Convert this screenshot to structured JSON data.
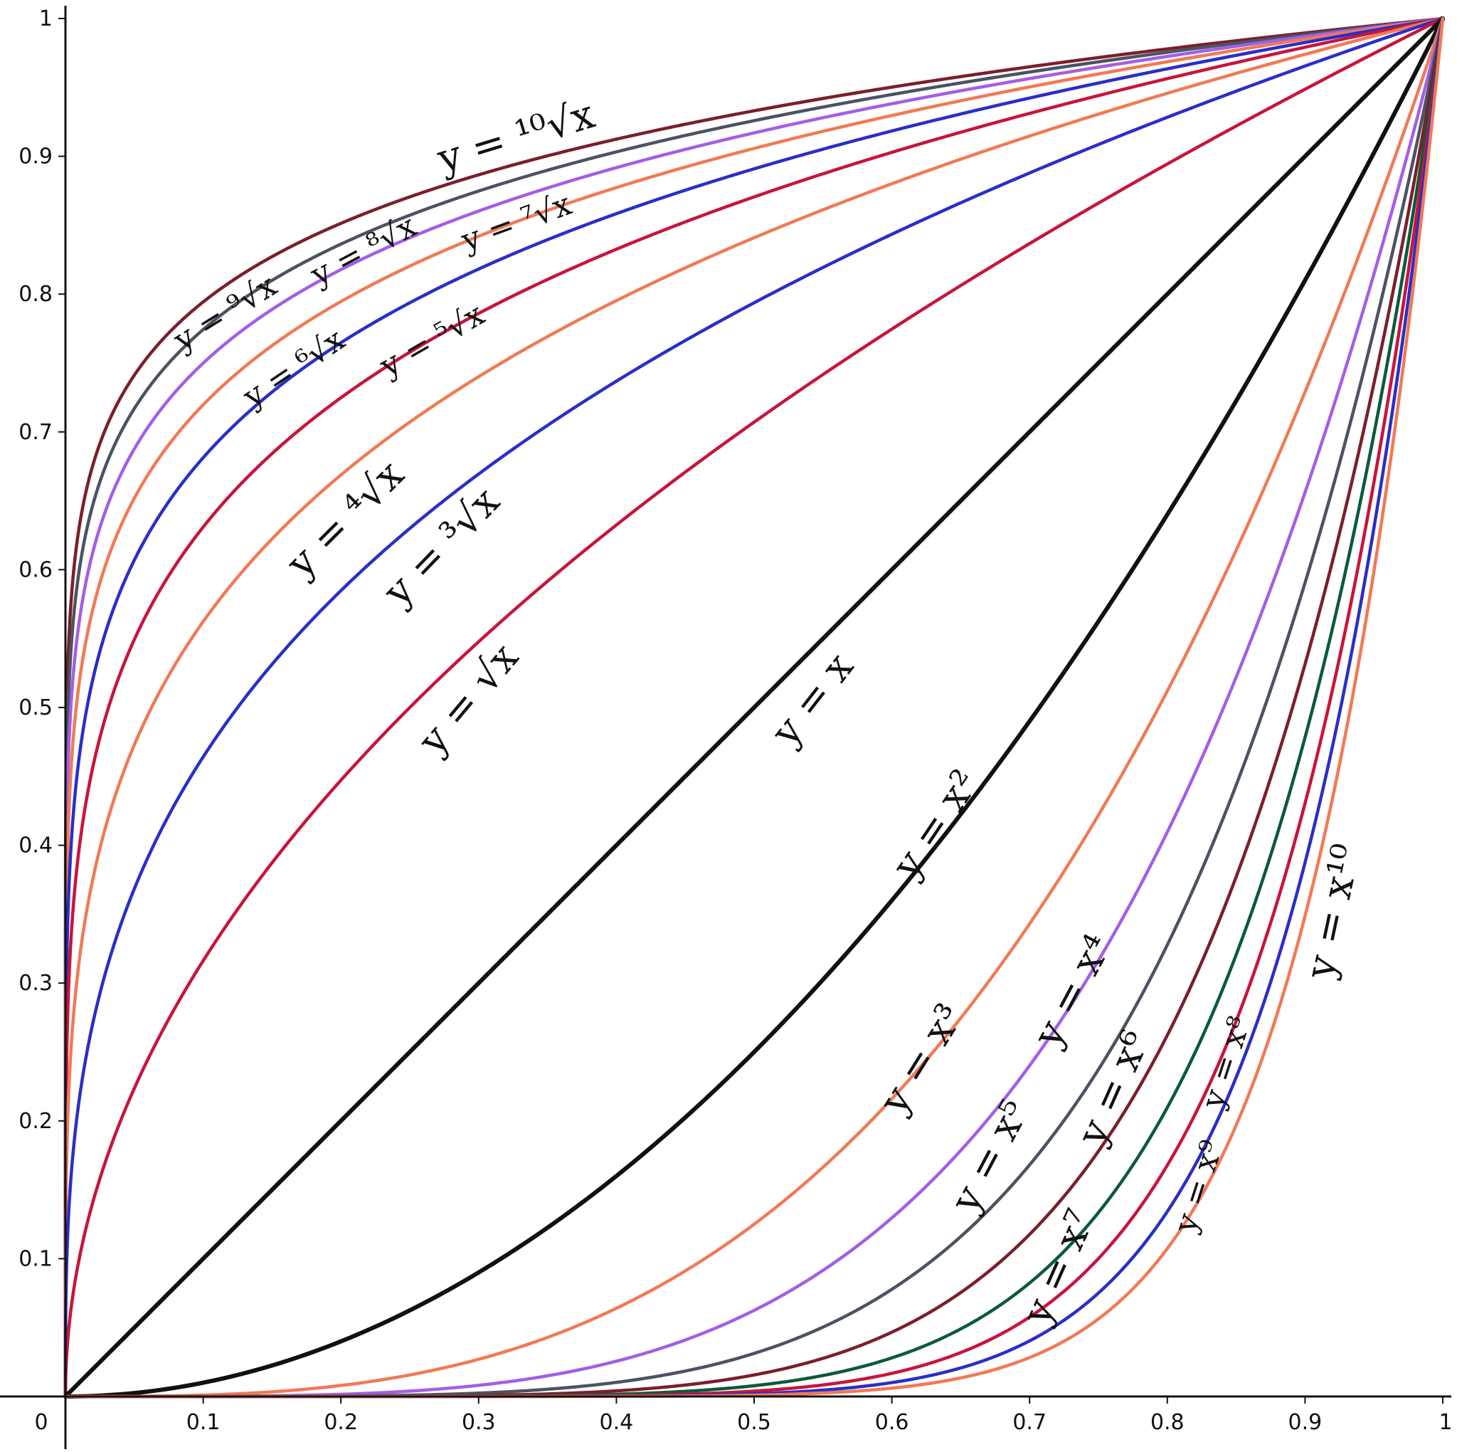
{
  "chart_data": {
    "type": "line",
    "title": "",
    "xlabel": "",
    "ylabel": "",
    "xlim": [
      0,
      1
    ],
    "ylim": [
      0,
      1
    ],
    "grid": false,
    "x_ticks": [
      "0",
      "0.1",
      "0.2",
      "0.3",
      "0.4",
      "0.5",
      "0.6",
      "0.7",
      "0.8",
      "0.9",
      "1"
    ],
    "x_tick_values": [
      0,
      0.1,
      0.2,
      0.3,
      0.4,
      0.5,
      0.6,
      0.7,
      0.8,
      0.9,
      1
    ],
    "y_ticks": [
      "0.1",
      "0.2",
      "0.3",
      "0.4",
      "0.5",
      "0.6",
      "0.7",
      "0.8",
      "0.9",
      "1"
    ],
    "y_tick_values": [
      0.1,
      0.2,
      0.3,
      0.4,
      0.5,
      0.6,
      0.7,
      0.8,
      0.9,
      1
    ],
    "series": [
      {
        "name": "y = ¹⁰√x",
        "exponent": 0.1,
        "color": "#7a1f2b"
      },
      {
        "name": "y = ⁹√x",
        "exponent": 0.1111,
        "color": "#4b5363"
      },
      {
        "name": "y = ⁸√x",
        "exponent": 0.125,
        "color": "#a45ee6"
      },
      {
        "name": "y = ⁷√x",
        "exponent": 0.142857,
        "color": "#f07a55"
      },
      {
        "name": "y = ⁶√x",
        "exponent": 0.166667,
        "color": "#2a2ec8"
      },
      {
        "name": "y = ⁵√x",
        "exponent": 0.2,
        "color": "#c8143c"
      },
      {
        "name": "y = ⁴√x",
        "exponent": 0.25,
        "color": "#f07a55"
      },
      {
        "name": "y = ³√x",
        "exponent": 0.333333,
        "color": "#2a2ec8"
      },
      {
        "name": "y = √x",
        "exponent": 0.5,
        "color": "#c8143c"
      },
      {
        "name": "y = x",
        "exponent": 1,
        "color": "#111111"
      },
      {
        "name": "y = x²",
        "exponent": 2,
        "color": "#111111"
      },
      {
        "name": "y = x³",
        "exponent": 3,
        "color": "#f07a55"
      },
      {
        "name": "y = x⁴",
        "exponent": 4,
        "color": "#a45ee6"
      },
      {
        "name": "y = x⁵",
        "exponent": 5,
        "color": "#4b5363"
      },
      {
        "name": "y = x⁶",
        "exponent": 6,
        "color": "#7a1f2b"
      },
      {
        "name": "y = x⁷",
        "exponent": 7,
        "color": "#0b5a3a"
      },
      {
        "name": "y = x⁸",
        "exponent": 8,
        "color": "#c8143c"
      },
      {
        "name": "y = x⁹",
        "exponent": 9,
        "color": "#2a2ec8"
      },
      {
        "name": "y = x¹⁰",
        "exponent": 10,
        "color": "#f07a55"
      }
    ],
    "labels": [
      {
        "text": "y = ¹⁰√x",
        "anchor_x": 0.33,
        "anchor_y": 0.905,
        "angle": -17,
        "size": "large"
      },
      {
        "text": "y = ⁹√x",
        "anchor_x": 0.12,
        "anchor_y": 0.78,
        "angle": -32,
        "size": "small"
      },
      {
        "text": "y = ⁸√x",
        "anchor_x": 0.22,
        "anchor_y": 0.825,
        "angle": -28,
        "size": "small"
      },
      {
        "text": "y = ⁷√x",
        "anchor_x": 0.33,
        "anchor_y": 0.845,
        "angle": -20,
        "size": "small"
      },
      {
        "text": "y = ⁶√x",
        "anchor_x": 0.17,
        "anchor_y": 0.74,
        "angle": -34,
        "size": "small"
      },
      {
        "text": "y = ⁵√x",
        "anchor_x": 0.27,
        "anchor_y": 0.76,
        "angle": -30,
        "size": "small"
      },
      {
        "text": "y = ⁴√x",
        "anchor_x": 0.21,
        "anchor_y": 0.63,
        "angle": -45,
        "size": "large"
      },
      {
        "text": "y = ³√x",
        "anchor_x": 0.28,
        "anchor_y": 0.61,
        "angle": -46,
        "size": "large"
      },
      {
        "text": "y = √x",
        "anchor_x": 0.3,
        "anchor_y": 0.5,
        "angle": -50,
        "size": "large"
      },
      {
        "text": "y = x",
        "anchor_x": 0.55,
        "anchor_y": 0.5,
        "angle": -52,
        "size": "large"
      },
      {
        "text": "y = x²",
        "anchor_x": 0.64,
        "anchor_y": 0.41,
        "angle": -56,
        "size": "large"
      },
      {
        "text": "y = x³",
        "anchor_x": 0.63,
        "anchor_y": 0.24,
        "angle": -58,
        "size": "large"
      },
      {
        "text": "y = x⁴",
        "anchor_x": 0.74,
        "anchor_y": 0.29,
        "angle": -62,
        "size": "large"
      },
      {
        "text": "y = x⁵",
        "anchor_x": 0.68,
        "anchor_y": 0.17,
        "angle": -62,
        "size": "large"
      },
      {
        "text": "y = x⁶",
        "anchor_x": 0.77,
        "anchor_y": 0.22,
        "angle": -66,
        "size": "large"
      },
      {
        "text": "y = x⁷",
        "anchor_x": 0.73,
        "anchor_y": 0.09,
        "angle": -66,
        "size": "large"
      },
      {
        "text": "y = x⁸",
        "anchor_x": 0.85,
        "anchor_y": 0.24,
        "angle": -72,
        "size": "small"
      },
      {
        "text": "y = x⁹",
        "anchor_x": 0.83,
        "anchor_y": 0.15,
        "angle": -72,
        "size": "small"
      },
      {
        "text": "y = x¹⁰",
        "anchor_x": 0.93,
        "anchor_y": 0.35,
        "angle": -78,
        "size": "large"
      }
    ]
  }
}
